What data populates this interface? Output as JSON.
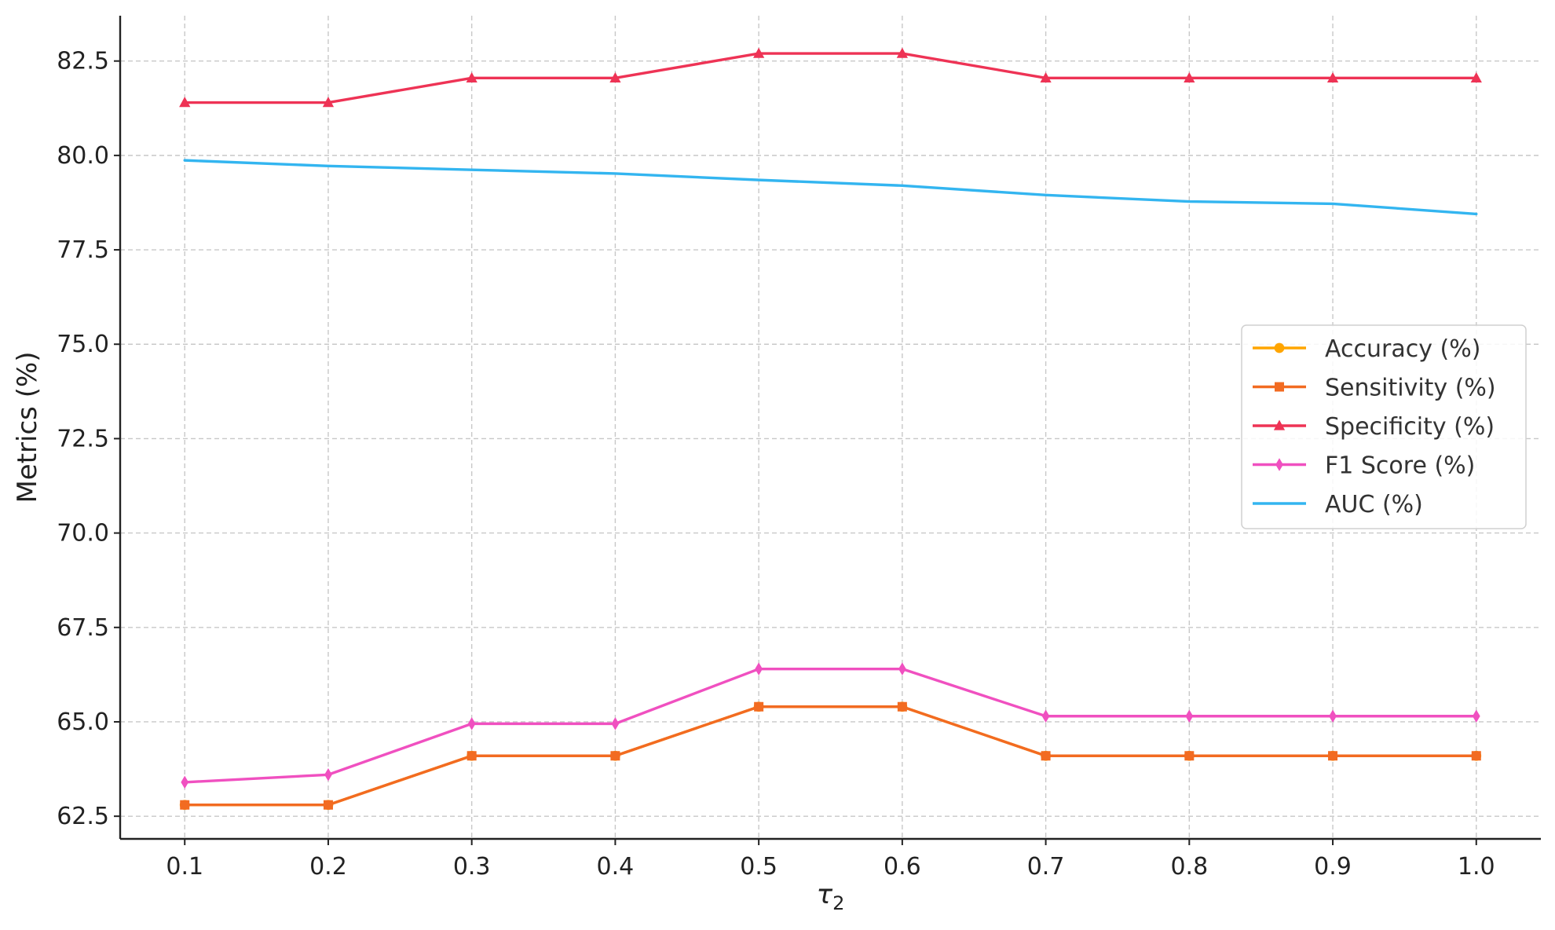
{
  "chart_data": {
    "type": "line",
    "xlabel": "τ",
    "xlabel_subscript": "2",
    "ylabel": "Metrics (%)",
    "x": [
      0.1,
      0.2,
      0.3,
      0.4,
      0.5,
      0.6,
      0.7,
      0.8,
      0.9,
      1.0
    ],
    "x_tick_labels": [
      "0.1",
      "0.2",
      "0.3",
      "0.4",
      "0.5",
      "0.6",
      "0.7",
      "0.8",
      "0.9",
      "1.0"
    ],
    "y_ticks": [
      62.5,
      65.0,
      67.5,
      70.0,
      72.5,
      75.0,
      77.5,
      80.0,
      82.5
    ],
    "y_tick_labels": [
      "62.5",
      "65.0",
      "67.5",
      "70.0",
      "72.5",
      "75.0",
      "77.5",
      "80.0",
      "82.5"
    ],
    "xlim": [
      0.055,
      1.045
    ],
    "ylim": [
      61.9,
      83.7
    ],
    "grid": true,
    "legend_position": "center-right",
    "series": [
      {
        "name": "Accuracy (%)",
        "color": "#FFA500",
        "marker": "circle",
        "values": [
          62.8,
          62.8,
          64.1,
          64.1,
          65.4,
          65.4,
          64.1,
          64.1,
          64.1,
          64.1
        ]
      },
      {
        "name": "Sensitivity (%)",
        "color": "#F26B21",
        "marker": "square",
        "values": [
          62.8,
          62.8,
          64.1,
          64.1,
          65.4,
          65.4,
          64.1,
          64.1,
          64.1,
          64.1
        ]
      },
      {
        "name": "Specificity (%)",
        "color": "#EE3355",
        "marker": "triangle",
        "values": [
          81.4,
          81.4,
          82.05,
          82.05,
          82.7,
          82.7,
          82.05,
          82.05,
          82.05,
          82.05
        ]
      },
      {
        "name": "F1 Score (%)",
        "color": "#F050C0",
        "marker": "diamond",
        "values": [
          63.4,
          63.6,
          64.95,
          64.95,
          66.4,
          66.4,
          65.15,
          65.15,
          65.15,
          65.15
        ]
      },
      {
        "name": "AUC (%)",
        "color": "#33B5F0",
        "marker": "none",
        "values": [
          79.87,
          79.72,
          79.62,
          79.52,
          79.35,
          79.2,
          78.95,
          78.78,
          78.72,
          78.45
        ]
      }
    ]
  }
}
